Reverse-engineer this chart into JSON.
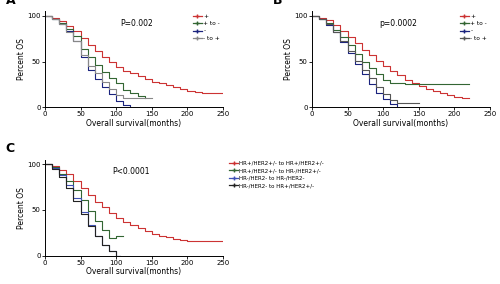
{
  "panel_A": {
    "title": "A",
    "pvalue": "P=0.002",
    "xlabel": "Overall survival(months)",
    "ylabel": "Percent OS",
    "xlim": [
      0,
      250
    ],
    "ylim": [
      0,
      105
    ],
    "xticks": [
      0,
      50,
      100,
      150,
      200,
      250
    ],
    "yticks": [
      0,
      50,
      100
    ],
    "legend_inside": true,
    "pvalue_x": 0.42,
    "pvalue_y": 0.92,
    "curves": [
      {
        "label": "+",
        "color": "#cc3333",
        "x": [
          0,
          10,
          20,
          30,
          40,
          50,
          60,
          70,
          80,
          90,
          100,
          110,
          120,
          130,
          140,
          150,
          160,
          170,
          180,
          190,
          200,
          210,
          220,
          230,
          240,
          250
        ],
        "y": [
          100,
          98,
          94,
          89,
          83,
          76,
          68,
          61,
          55,
          50,
          44,
          40,
          37,
          34,
          31,
          28,
          26,
          24,
          22,
          20,
          18,
          17,
          16,
          16,
          16,
          16
        ]
      },
      {
        "label": "+ to -",
        "color": "#336633",
        "x": [
          0,
          10,
          20,
          30,
          40,
          50,
          60,
          70,
          80,
          90,
          100,
          110,
          120,
          130,
          140
        ],
        "y": [
          100,
          97,
          92,
          86,
          78,
          64,
          55,
          46,
          38,
          32,
          27,
          19,
          15,
          12,
          10
        ]
      },
      {
        "label": "-",
        "color": "#1a237e",
        "x": [
          0,
          10,
          20,
          30,
          40,
          50,
          60,
          70,
          80,
          90,
          100,
          110,
          120
        ],
        "y": [
          100,
          97,
          91,
          83,
          72,
          55,
          41,
          31,
          22,
          14,
          7,
          2,
          0
        ]
      },
      {
        "label": "- to +",
        "color": "#888888",
        "x": [
          0,
          10,
          20,
          30,
          40,
          50,
          60,
          70,
          80,
          90,
          100,
          110,
          120,
          130,
          140,
          150
        ],
        "y": [
          100,
          97,
          91,
          82,
          72,
          57,
          45,
          37,
          28,
          20,
          13,
          10,
          10,
          10,
          10,
          10
        ]
      }
    ]
  },
  "panel_B": {
    "title": "B",
    "pvalue": "p=0.0002",
    "xlabel": "Overall survival(months)",
    "ylabel": "Percent OS",
    "xlim": [
      0,
      250
    ],
    "ylim": [
      0,
      105
    ],
    "xticks": [
      0,
      50,
      100,
      150,
      200,
      250
    ],
    "yticks": [
      0,
      50,
      100
    ],
    "legend_inside": true,
    "pvalue_x": 0.38,
    "pvalue_y": 0.92,
    "curves": [
      {
        "label": "+",
        "color": "#cc3333",
        "x": [
          0,
          10,
          20,
          30,
          40,
          50,
          60,
          70,
          80,
          90,
          100,
          110,
          120,
          130,
          140,
          150,
          160,
          170,
          180,
          190,
          200,
          210,
          220
        ],
        "y": [
          100,
          98,
          95,
          90,
          84,
          77,
          70,
          63,
          57,
          51,
          45,
          40,
          35,
          30,
          26,
          23,
          20,
          18,
          15,
          13,
          11,
          10,
          10
        ]
      },
      {
        "label": "+ to -",
        "color": "#336633",
        "x": [
          0,
          10,
          20,
          30,
          40,
          50,
          60,
          70,
          80,
          90,
          100,
          110,
          120,
          130,
          140,
          150,
          160,
          170,
          180,
          190,
          200,
          210,
          220
        ],
        "y": [
          100,
          97,
          92,
          85,
          77,
          68,
          58,
          50,
          43,
          36,
          30,
          26,
          26,
          25,
          25,
          25,
          25,
          25,
          25,
          25,
          25,
          25,
          25
        ]
      },
      {
        "label": "-",
        "color": "#1a237e",
        "x": [
          0,
          10,
          20,
          30,
          40,
          50,
          60,
          70,
          80,
          90,
          100,
          110,
          120
        ],
        "y": [
          100,
          97,
          90,
          82,
          71,
          59,
          47,
          36,
          25,
          16,
          9,
          3,
          0
        ]
      },
      {
        "label": "- to +",
        "color": "#555555",
        "x": [
          0,
          10,
          20,
          30,
          40,
          50,
          60,
          70,
          80,
          90,
          100,
          110,
          120,
          130,
          140,
          150
        ],
        "y": [
          100,
          97,
          91,
          82,
          72,
          62,
          51,
          41,
          32,
          22,
          14,
          8,
          5,
          5,
          5,
          5
        ]
      }
    ]
  },
  "panel_C": {
    "title": "C",
    "pvalue": "P<0.0001",
    "xlabel": "Overall survival(months)",
    "ylabel": "Percent OS",
    "xlim": [
      0,
      250
    ],
    "ylim": [
      0,
      105
    ],
    "xticks": [
      0,
      50,
      100,
      150,
      200,
      250
    ],
    "yticks": [
      0,
      50,
      100
    ],
    "legend_inside": false,
    "pvalue_x": 0.38,
    "pvalue_y": 0.92,
    "curves": [
      {
        "label": "HR+/HER2+/- to HR+/HER2+/-",
        "color": "#cc3333",
        "x": [
          0,
          10,
          20,
          30,
          40,
          50,
          60,
          70,
          80,
          90,
          100,
          110,
          120,
          130,
          140,
          150,
          160,
          170,
          180,
          190,
          200,
          210,
          220,
          230,
          240,
          250
        ],
        "y": [
          100,
          98,
          94,
          89,
          82,
          74,
          66,
          59,
          53,
          47,
          41,
          37,
          33,
          30,
          27,
          24,
          22,
          20,
          18,
          17,
          16,
          16,
          16,
          16,
          16,
          16
        ]
      },
      {
        "label": "HR+/HER2+/- to HR-/HER2+/-",
        "color": "#336633",
        "x": [
          0,
          10,
          20,
          30,
          40,
          50,
          60,
          70,
          80,
          90,
          100,
          110
        ],
        "y": [
          100,
          97,
          90,
          82,
          72,
          61,
          49,
          38,
          28,
          19,
          21,
          22
        ]
      },
      {
        "label": "HR-/HER2- to HR-/HER2-",
        "color": "#3f51b5",
        "x": [
          0,
          10,
          20,
          30,
          40,
          50,
          60,
          70,
          80,
          90,
          100,
          105
        ],
        "y": [
          100,
          96,
          88,
          77,
          63,
          48,
          34,
          22,
          12,
          5,
          0,
          0
        ]
      },
      {
        "label": "HR-/HER2- to HR+/HER2+/-",
        "color": "#222222",
        "x": [
          0,
          10,
          20,
          30,
          40,
          50,
          60,
          70,
          80,
          90,
          100,
          105
        ],
        "y": [
          100,
          95,
          86,
          74,
          60,
          46,
          32,
          21,
          12,
          5,
          0,
          0
        ]
      }
    ]
  }
}
